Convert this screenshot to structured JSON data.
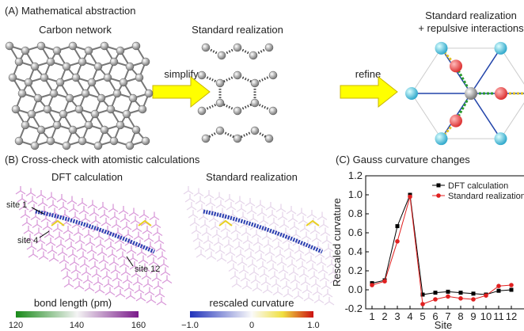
{
  "panel_a": {
    "title": "(A) Mathematical abstraction",
    "carbon_network": "Carbon network",
    "standard_realization": "Standard realization",
    "refined_title": [
      "Standard realization",
      "+ repulsive interactions"
    ],
    "simplify": "simplify",
    "refine": "refine"
  },
  "panel_b": {
    "title": "(B) Cross-check with atomistic calculations",
    "dft": "DFT calculation",
    "standard": "Standard realization",
    "site_1": "site 1",
    "site_4": "site 4",
    "site_12": "site 12",
    "bond_bar": {
      "label": "bond length (pm)",
      "ticks": [
        "120",
        "140",
        "160"
      ]
    },
    "curv_bar": {
      "label": "rescaled curvature",
      "ticks": [
        "−1.0",
        "0",
        "1.0"
      ]
    }
  },
  "chart_data": {
    "type": "line",
    "title": "(C) Gauss curvature changes",
    "x_label": "Site",
    "y_label": "Rescaled curvature",
    "x": [
      1,
      2,
      3,
      4,
      5,
      6,
      7,
      8,
      9,
      10,
      11,
      12
    ],
    "series": [
      {
        "name": "DFT calculation",
        "color": "#000000",
        "marker": "square",
        "values": [
          0.07,
          0.1,
          0.67,
          1.0,
          -0.05,
          -0.03,
          -0.02,
          -0.03,
          -0.04,
          -0.05,
          -0.01,
          0.0
        ]
      },
      {
        "name": "Standard realization",
        "color": "#e02020",
        "marker": "circle",
        "values": [
          0.05,
          0.09,
          0.51,
          0.98,
          -0.15,
          -0.1,
          -0.07,
          -0.09,
          -0.1,
          -0.06,
          0.04,
          0.05
        ]
      }
    ],
    "xlim": [
      0.5,
      13
    ],
    "xticks": [
      1,
      2,
      3,
      4,
      5,
      6,
      7,
      8,
      9,
      10,
      11,
      12
    ],
    "ylim": [
      -0.2,
      1.2
    ],
    "yticks": [
      {
        "value": -0.2,
        "label": "-0.2"
      },
      {
        "value": 0,
        "label": "0.0"
      },
      0.2,
      0.4,
      0.6,
      0.8,
      {
        "value": 1,
        "label": "1.0"
      },
      1.2
    ],
    "legend": "top-right"
  }
}
